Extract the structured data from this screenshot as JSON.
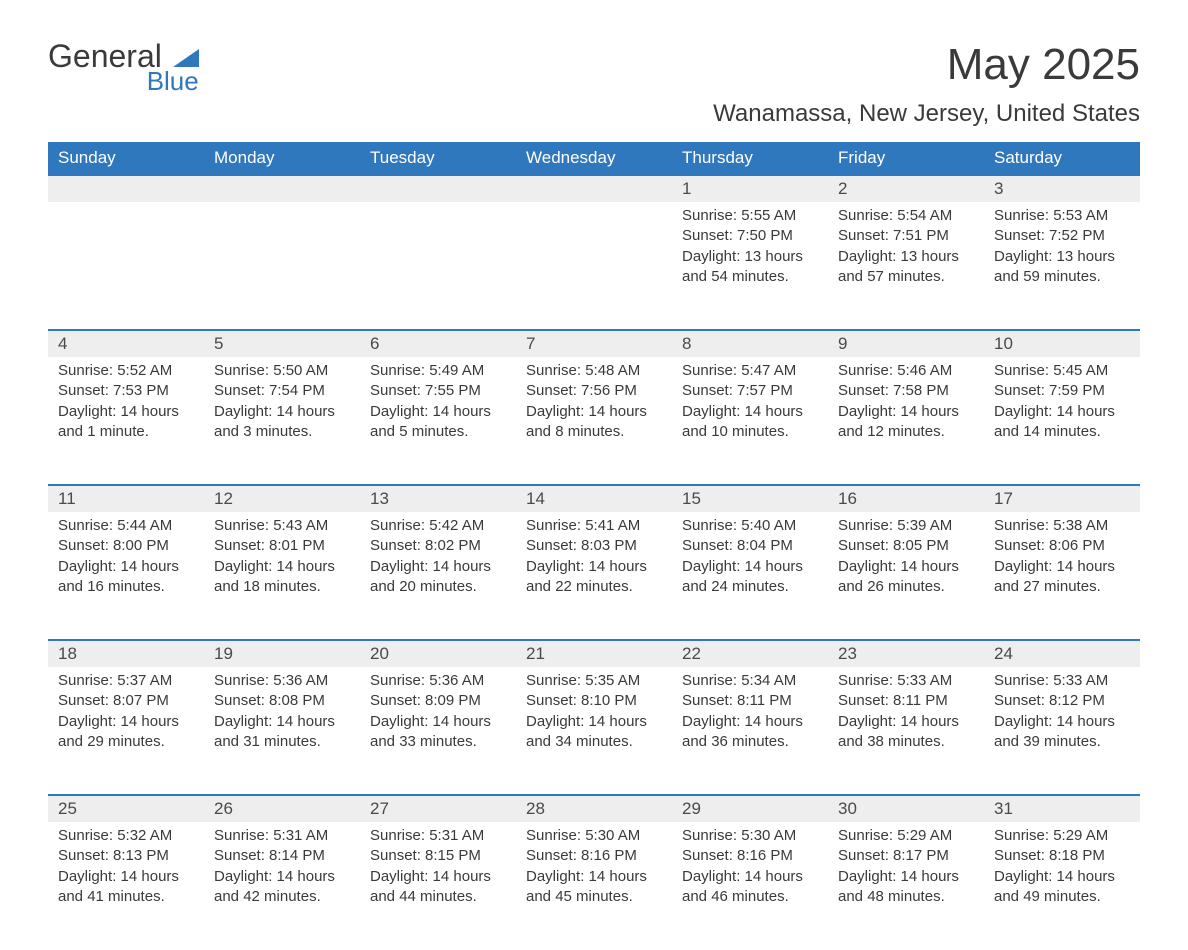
{
  "brand": {
    "part1": "General",
    "part2": "Blue",
    "iconColor": "#2f78bd"
  },
  "title": "May 2025",
  "location": "Wanamassa, New Jersey, United States",
  "colors": {
    "headerBg": "#2f78bd",
    "headerText": "#ffffff",
    "dayBg": "#eeeeee",
    "borderTop": "#2f78bd",
    "bodyText": "#3a3a3a"
  },
  "weekdays": [
    "Sunday",
    "Monday",
    "Tuesday",
    "Wednesday",
    "Thursday",
    "Friday",
    "Saturday"
  ],
  "startOffset": 4,
  "daysInMonth": 31,
  "days": {
    "1": {
      "sunrise": "5:55 AM",
      "sunset": "7:50 PM",
      "daylight": "13 hours and 54 minutes."
    },
    "2": {
      "sunrise": "5:54 AM",
      "sunset": "7:51 PM",
      "daylight": "13 hours and 57 minutes."
    },
    "3": {
      "sunrise": "5:53 AM",
      "sunset": "7:52 PM",
      "daylight": "13 hours and 59 minutes."
    },
    "4": {
      "sunrise": "5:52 AM",
      "sunset": "7:53 PM",
      "daylight": "14 hours and 1 minute."
    },
    "5": {
      "sunrise": "5:50 AM",
      "sunset": "7:54 PM",
      "daylight": "14 hours and 3 minutes."
    },
    "6": {
      "sunrise": "5:49 AM",
      "sunset": "7:55 PM",
      "daylight": "14 hours and 5 minutes."
    },
    "7": {
      "sunrise": "5:48 AM",
      "sunset": "7:56 PM",
      "daylight": "14 hours and 8 minutes."
    },
    "8": {
      "sunrise": "5:47 AM",
      "sunset": "7:57 PM",
      "daylight": "14 hours and 10 minutes."
    },
    "9": {
      "sunrise": "5:46 AM",
      "sunset": "7:58 PM",
      "daylight": "14 hours and 12 minutes."
    },
    "10": {
      "sunrise": "5:45 AM",
      "sunset": "7:59 PM",
      "daylight": "14 hours and 14 minutes."
    },
    "11": {
      "sunrise": "5:44 AM",
      "sunset": "8:00 PM",
      "daylight": "14 hours and 16 minutes."
    },
    "12": {
      "sunrise": "5:43 AM",
      "sunset": "8:01 PM",
      "daylight": "14 hours and 18 minutes."
    },
    "13": {
      "sunrise": "5:42 AM",
      "sunset": "8:02 PM",
      "daylight": "14 hours and 20 minutes."
    },
    "14": {
      "sunrise": "5:41 AM",
      "sunset": "8:03 PM",
      "daylight": "14 hours and 22 minutes."
    },
    "15": {
      "sunrise": "5:40 AM",
      "sunset": "8:04 PM",
      "daylight": "14 hours and 24 minutes."
    },
    "16": {
      "sunrise": "5:39 AM",
      "sunset": "8:05 PM",
      "daylight": "14 hours and 26 minutes."
    },
    "17": {
      "sunrise": "5:38 AM",
      "sunset": "8:06 PM",
      "daylight": "14 hours and 27 minutes."
    },
    "18": {
      "sunrise": "5:37 AM",
      "sunset": "8:07 PM",
      "daylight": "14 hours and 29 minutes."
    },
    "19": {
      "sunrise": "5:36 AM",
      "sunset": "8:08 PM",
      "daylight": "14 hours and 31 minutes."
    },
    "20": {
      "sunrise": "5:36 AM",
      "sunset": "8:09 PM",
      "daylight": "14 hours and 33 minutes."
    },
    "21": {
      "sunrise": "5:35 AM",
      "sunset": "8:10 PM",
      "daylight": "14 hours and 34 minutes."
    },
    "22": {
      "sunrise": "5:34 AM",
      "sunset": "8:11 PM",
      "daylight": "14 hours and 36 minutes."
    },
    "23": {
      "sunrise": "5:33 AM",
      "sunset": "8:11 PM",
      "daylight": "14 hours and 38 minutes."
    },
    "24": {
      "sunrise": "5:33 AM",
      "sunset": "8:12 PM",
      "daylight": "14 hours and 39 minutes."
    },
    "25": {
      "sunrise": "5:32 AM",
      "sunset": "8:13 PM",
      "daylight": "14 hours and 41 minutes."
    },
    "26": {
      "sunrise": "5:31 AM",
      "sunset": "8:14 PM",
      "daylight": "14 hours and 42 minutes."
    },
    "27": {
      "sunrise": "5:31 AM",
      "sunset": "8:15 PM",
      "daylight": "14 hours and 44 minutes."
    },
    "28": {
      "sunrise": "5:30 AM",
      "sunset": "8:16 PM",
      "daylight": "14 hours and 45 minutes."
    },
    "29": {
      "sunrise": "5:30 AM",
      "sunset": "8:16 PM",
      "daylight": "14 hours and 46 minutes."
    },
    "30": {
      "sunrise": "5:29 AM",
      "sunset": "8:17 PM",
      "daylight": "14 hours and 48 minutes."
    },
    "31": {
      "sunrise": "5:29 AM",
      "sunset": "8:18 PM",
      "daylight": "14 hours and 49 minutes."
    }
  },
  "labels": {
    "sunrise": "Sunrise:",
    "sunset": "Sunset:",
    "daylight": "Daylight:"
  }
}
